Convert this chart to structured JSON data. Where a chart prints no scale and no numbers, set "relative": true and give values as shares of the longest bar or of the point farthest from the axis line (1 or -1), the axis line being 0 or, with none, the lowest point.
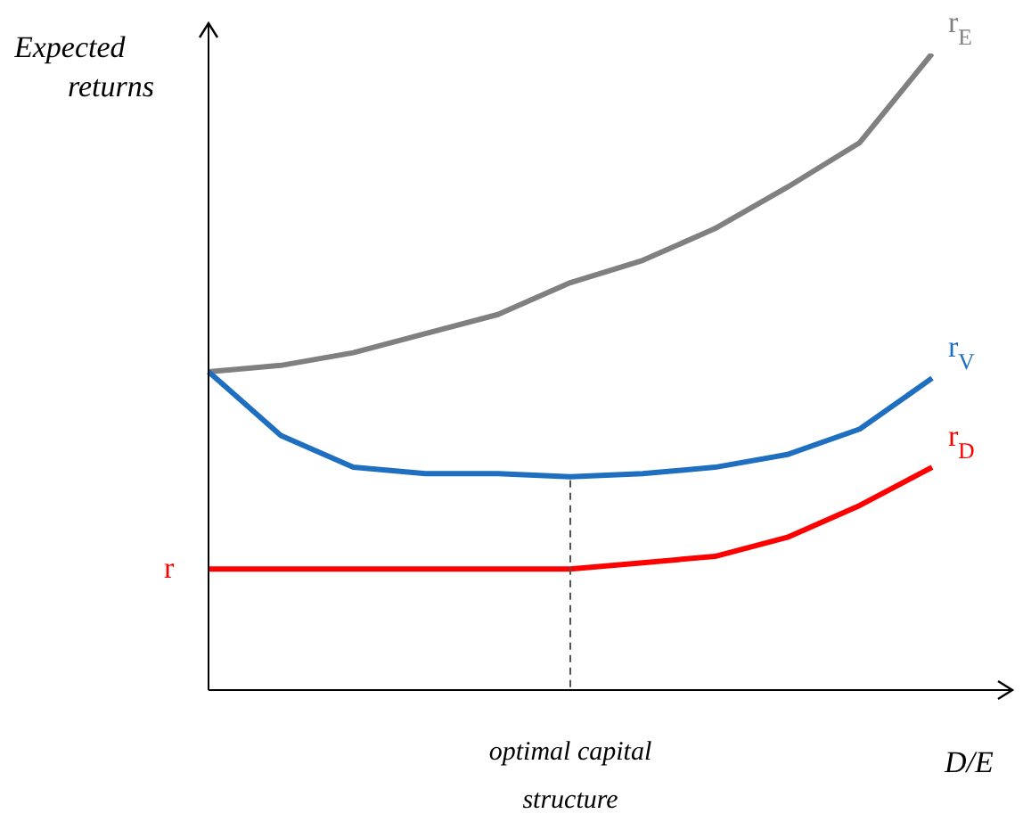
{
  "chart_data": {
    "type": "line",
    "relative": true,
    "xlabel": "D/E",
    "ylabel": "Expected returns",
    "categories": [
      null,
      null,
      null,
      null,
      null,
      null,
      null,
      null,
      null,
      null,
      null
    ],
    "series": [
      {
        "name": "r$_{E}$",
        "color": "#808080",
        "values": [
          0.5,
          0.51,
          0.53,
          0.56,
          0.59,
          0.64,
          0.675,
          0.725,
          0.79,
          0.86,
          1
        ]
      },
      {
        "name": "r$_{V}$",
        "color": "#1f6fc0",
        "values": [
          0.5,
          0.4,
          0.35,
          0.34,
          0.34,
          0.335,
          0.34,
          0.35,
          0.37,
          0.41,
          0.49
        ]
      },
      {
        "name": "r$_{D}$",
        "color": "#ff0000",
        "values": [
          0.19,
          0.19,
          0.19,
          0.19,
          0.19,
          0.19,
          0.2,
          0.21,
          0.24,
          0.29,
          0.35
        ]
      }
    ],
    "annotations": [
      "r",
      "optimal capital structure"
    ],
    "marker": "none",
    "line_style": "solid"
  }
}
